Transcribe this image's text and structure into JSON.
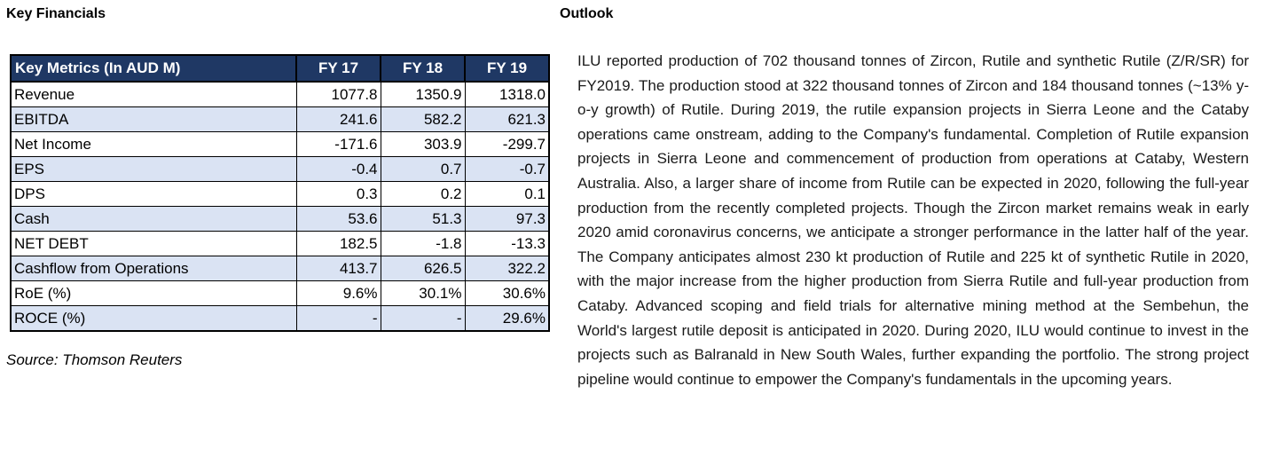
{
  "left": {
    "heading": "Key Financials",
    "table": {
      "headers": [
        "Key Metrics (In AUD M)",
        "FY 17",
        "FY 18",
        "FY 19"
      ],
      "rows": [
        [
          "Revenue",
          "1077.8",
          "1350.9",
          "1318.0"
        ],
        [
          "EBITDA",
          "241.6",
          "582.2",
          "621.3"
        ],
        [
          "Net Income",
          "-171.6",
          "303.9",
          "-299.7"
        ],
        [
          "EPS",
          "-0.4",
          "0.7",
          "-0.7"
        ],
        [
          "DPS",
          "0.3",
          "0.2",
          "0.1"
        ],
        [
          "Cash",
          "53.6",
          "51.3",
          "97.3"
        ],
        [
          "NET DEBT",
          "182.5",
          "-1.8",
          "-13.3"
        ],
        [
          "Cashflow from Operations",
          "413.7",
          "626.5",
          "322.2"
        ],
        [
          "RoE (%)",
          "9.6%",
          "30.1%",
          "30.6%"
        ],
        [
          "ROCE (%)",
          "-",
          "-",
          "29.6%"
        ]
      ]
    },
    "source": "Source: Thomson Reuters"
  },
  "right": {
    "heading": "Outlook",
    "paragraph": "ILU reported production of 702 thousand tonnes of Zircon, Rutile and synthetic Rutile (Z/R/SR) for FY2019. The production stood at 322 thousand tonnes of Zircon and 184 thousand tonnes (~13% y-o-y growth) of Rutile. During 2019, the rutile expansion projects in Sierra Leone and the Cataby operations came onstream, adding to the Company's fundamental. Completion of Rutile expansion projects in Sierra Leone and commencement of production from operations at Cataby, Western Australia. Also, a larger share of income from Rutile can be expected in 2020, following the full-year production from the recently completed projects. Though the Zircon market remains weak in early 2020 amid coronavirus concerns, we anticipate a stronger performance in the latter half of the year. The Company anticipates almost 230 kt production of Rutile and 225 kt of synthetic Rutile in 2020, with the major increase from the higher production from Sierra Rutile and full-year production from Cataby. Advanced scoping and field trials for alternative mining method at the Sembehun, the World's largest rutile deposit is anticipated in 2020. During 2020, ILU would continue to invest in the projects such as Balranald in New South Wales, further expanding the portfolio. The strong project pipeline would continue to empower the Company's fundamentals in the upcoming years."
  },
  "colors": {
    "header_bg": "#1f3864",
    "alt_row_bg": "#dae3f3"
  }
}
